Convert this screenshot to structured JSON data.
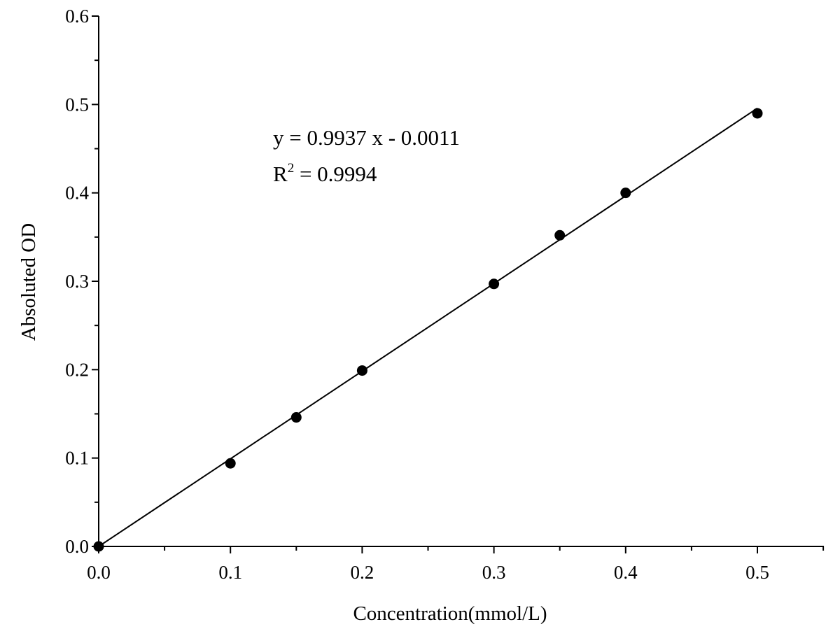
{
  "chart_data": {
    "type": "scatter",
    "xlabel": "Concentration(mmol/L)",
    "ylabel": "Absoluted OD",
    "xlim": [
      0.0,
      0.55
    ],
    "ylim": [
      0.0,
      0.6
    ],
    "x_ticks": [
      "0.0",
      "0.1",
      "0.2",
      "0.3",
      "0.4",
      "0.5"
    ],
    "y_ticks": [
      "0.0",
      "0.1",
      "0.2",
      "0.3",
      "0.4",
      "0.5",
      "0.6"
    ],
    "grid": false,
    "points": [
      {
        "x": 0.0,
        "y": 0.0
      },
      {
        "x": 0.1,
        "y": 0.094
      },
      {
        "x": 0.15,
        "y": 0.146
      },
      {
        "x": 0.2,
        "y": 0.199
      },
      {
        "x": 0.3,
        "y": 0.297
      },
      {
        "x": 0.35,
        "y": 0.352
      },
      {
        "x": 0.4,
        "y": 0.4
      },
      {
        "x": 0.5,
        "y": 0.49
      }
    ],
    "fit_line": {
      "slope": 0.9937,
      "intercept": -0.0011,
      "x_range": [
        0.0,
        0.5
      ]
    },
    "annotations": {
      "equation": "y = 0.9937 x - 0.0011",
      "r2_prefix": "R",
      "r2_superscript": "2",
      "r2_value": " = 0.9994"
    },
    "colors": {
      "axis": "#000000",
      "marker": "#000000",
      "fit_line": "#000000"
    }
  }
}
